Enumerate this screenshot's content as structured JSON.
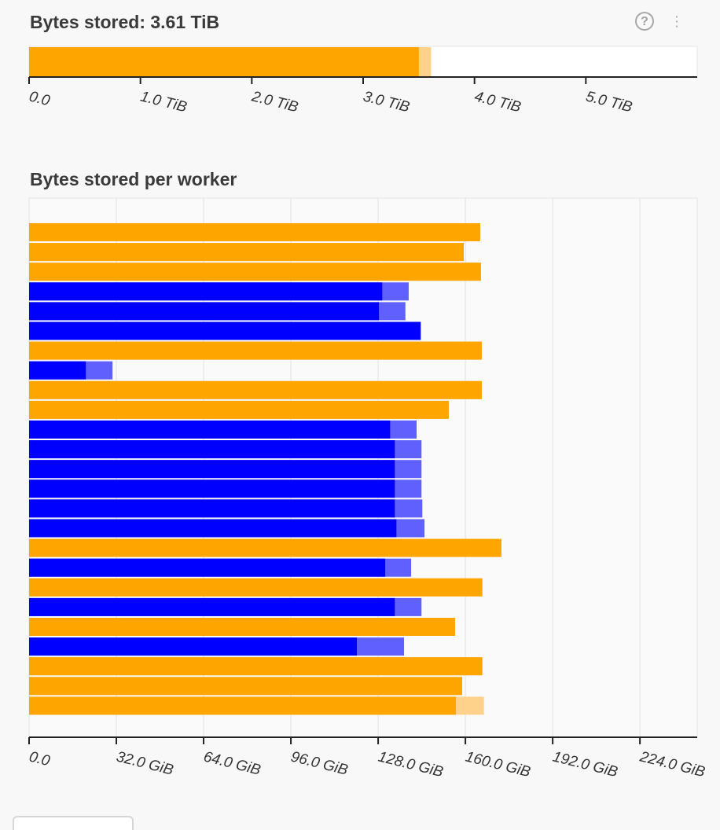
{
  "header": {
    "help_icon": "question-circle-icon",
    "help_glyph": "?",
    "menu_icon": "vertical-dots-icon",
    "menu_glyph": "⋮"
  },
  "colors": {
    "memory": "#ffa500",
    "memory_unmanaged": "#ffd28c",
    "blue": "#0000ff",
    "blue_unmanaged": "#6060ff",
    "grid": "#e2e2e2",
    "axis": "#222222"
  },
  "chart_data": [
    {
      "type": "bar",
      "orientation": "horizontal",
      "title": "Bytes stored: 3.61 TiB",
      "xlabel": "",
      "ylabel": "",
      "unit": "TiB",
      "xlim": [
        0,
        6.0
      ],
      "ticks": [
        0,
        1,
        2,
        3,
        4,
        5
      ],
      "tick_labels": [
        "0.0",
        "1.0 TiB",
        "2.0 TiB",
        "3.0 TiB",
        "4.0 TiB",
        "5.0 TiB"
      ],
      "grid": false,
      "series": [
        {
          "managed": 3.5,
          "total": 3.61,
          "color": "memory"
        }
      ]
    },
    {
      "type": "bar",
      "orientation": "horizontal",
      "title": "Bytes stored per worker",
      "xlabel": "",
      "ylabel": "",
      "unit": "GiB",
      "xlim": [
        0,
        245
      ],
      "ticks": [
        0,
        32,
        64,
        96,
        128,
        160,
        192,
        224
      ],
      "tick_labels": [
        "0.0",
        "32.0 GiB",
        "64.0 GiB",
        "96.0 GiB",
        "128.0 GiB",
        "160.0 GiB",
        "192.0 GiB",
        "224.0 GiB"
      ],
      "grid": true,
      "workers": [
        {
          "managed": 165.4,
          "total": 165.4,
          "color": "memory"
        },
        {
          "managed": 159.4,
          "total": 159.4,
          "color": "memory"
        },
        {
          "managed": 165.7,
          "total": 165.7,
          "color": "memory"
        },
        {
          "managed": 129.5,
          "total": 139.2,
          "color": "blue"
        },
        {
          "managed": 128.3,
          "total": 138.0,
          "color": "blue"
        },
        {
          "managed": 143.6,
          "total": 143.6,
          "color": "blue"
        },
        {
          "managed": 166.0,
          "total": 166.0,
          "color": "memory"
        },
        {
          "managed": 20.8,
          "total": 30.6,
          "color": "blue"
        },
        {
          "managed": 166.0,
          "total": 166.0,
          "color": "memory"
        },
        {
          "managed": 153.9,
          "total": 153.9,
          "color": "memory"
        },
        {
          "managed": 132.4,
          "total": 142.1,
          "color": "blue"
        },
        {
          "managed": 134.1,
          "total": 143.9,
          "color": "blue"
        },
        {
          "managed": 134.1,
          "total": 143.9,
          "color": "blue"
        },
        {
          "managed": 134.1,
          "total": 143.9,
          "color": "blue"
        },
        {
          "managed": 134.1,
          "total": 144.2,
          "color": "blue"
        },
        {
          "managed": 134.7,
          "total": 145.0,
          "color": "blue"
        },
        {
          "managed": 173.2,
          "total": 173.2,
          "color": "memory"
        },
        {
          "managed": 130.6,
          "total": 140.1,
          "color": "blue"
        },
        {
          "managed": 166.2,
          "total": 166.2,
          "color": "memory"
        },
        {
          "managed": 134.1,
          "total": 143.9,
          "color": "blue"
        },
        {
          "managed": 156.2,
          "total": 156.2,
          "color": "memory"
        },
        {
          "managed": 120.2,
          "total": 137.5,
          "color": "blue"
        },
        {
          "managed": 166.2,
          "total": 166.2,
          "color": "memory"
        },
        {
          "managed": 158.8,
          "total": 158.8,
          "color": "memory"
        },
        {
          "managed": 156.5,
          "total": 166.8,
          "color": "memory"
        }
      ]
    }
  ]
}
